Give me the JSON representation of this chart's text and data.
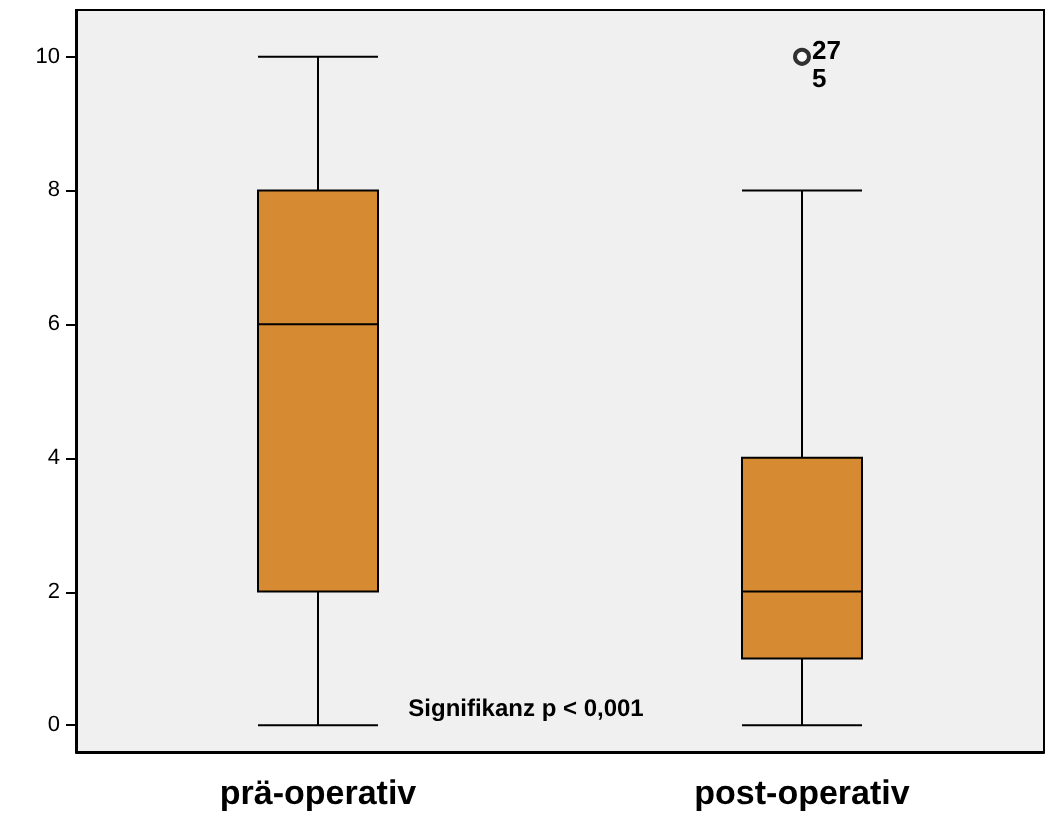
{
  "chart_data": {
    "type": "box",
    "categories": [
      "prä-operativ",
      "post-operativ"
    ],
    "boxes": [
      {
        "low": 0,
        "q1": 2,
        "median": 6,
        "q3": 8,
        "high": 10
      },
      {
        "low": 0,
        "q1": 1,
        "median": 2,
        "q3": 4,
        "high": 8,
        "outliers": [
          10
        ]
      }
    ],
    "color": "#d68a31",
    "ylim": [
      -0.4,
      10.7
    ],
    "yticks": [
      0,
      2,
      4,
      6,
      8,
      10
    ],
    "grid": false,
    "annotations": [
      "27",
      "5",
      "Signifikanz p < 0,001"
    ]
  }
}
